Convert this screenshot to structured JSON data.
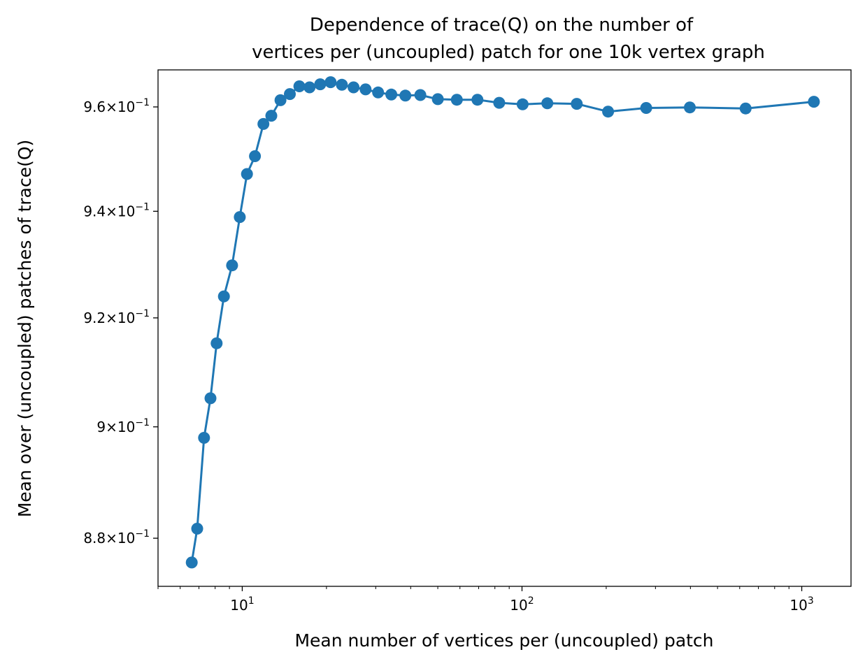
{
  "chart_data": {
    "type": "line",
    "title": "Dependence of trace(Q) on the number of vertices per (uncoupled) patch for one 10k vertex graph",
    "title_lines": [
      "Dependence of trace(Q) on the number of",
      "vertices per (uncoupled) patch for one 10k vertex graph"
    ],
    "xlabel": "Mean number of vertices per (uncoupled) patch",
    "ylabel": "Mean over (uncoupled) patches of trace(Q)",
    "x_scale": "log",
    "y_scale": "log",
    "xlim": [
      5,
      1500
    ],
    "ylim": [
      0.8715,
      0.9672
    ],
    "grid": false,
    "legend": "none",
    "marker": "circle",
    "color": "#1f77b4",
    "x_ticks": [
      {
        "value": 10,
        "base": "10",
        "exp": "1"
      },
      {
        "value": 100,
        "base": "10",
        "exp": "2"
      },
      {
        "value": 1000,
        "base": "10",
        "exp": "3"
      }
    ],
    "y_ticks": [
      {
        "value": 0.88,
        "mant": "8.8",
        "base": "10",
        "exp": "−1"
      },
      {
        "value": 0.9,
        "mant": "9",
        "base": "10",
        "exp": "−1"
      },
      {
        "value": 0.92,
        "mant": "9.2",
        "base": "10",
        "exp": "−1"
      },
      {
        "value": 0.94,
        "mant": "9.4",
        "base": "10",
        "exp": "−1"
      },
      {
        "value": 0.96,
        "mant": "9.6",
        "base": "10",
        "exp": "−1"
      }
    ],
    "series": [
      {
        "x": [
          6.6,
          6.9,
          7.3,
          7.7,
          8.1,
          8.6,
          9.2,
          9.8,
          10.4,
          11.1,
          11.9,
          12.7,
          13.7,
          14.8,
          16.0,
          17.4,
          19.0,
          20.7,
          22.7,
          25.0,
          27.6,
          30.6,
          34.1,
          38.3,
          43.3,
          50.0,
          58.5,
          69.3,
          82.9,
          100.5,
          123.2,
          156.9,
          203.1,
          278.0,
          398.0,
          630.0,
          1105.0
        ],
        "y": [
          0.8757,
          0.8817,
          0.898,
          0.9052,
          0.9153,
          0.924,
          0.9298,
          0.9389,
          0.9471,
          0.9505,
          0.9567,
          0.9583,
          0.9613,
          0.9625,
          0.964,
          0.9638,
          0.9644,
          0.9648,
          0.9643,
          0.9638,
          0.9634,
          0.9628,
          0.9624,
          0.9622,
          0.9623,
          0.9615,
          0.9614,
          0.9614,
          0.9608,
          0.9605,
          0.9607,
          0.9606,
          0.9591,
          0.9598,
          0.9599,
          0.9597,
          0.961
        ]
      }
    ]
  }
}
